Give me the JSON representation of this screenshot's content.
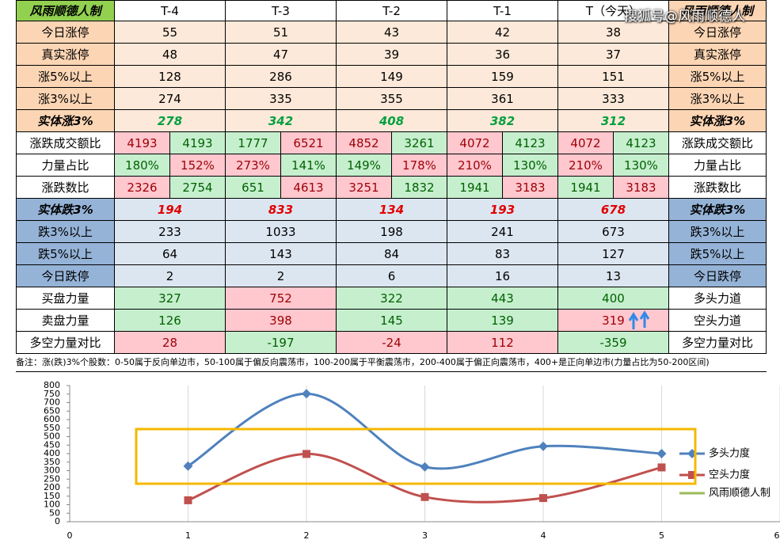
{
  "watermark": "搜狐号@风雨顺德人",
  "table": {
    "header": [
      "风雨顺德人制",
      "T-4",
      "T-3",
      "T-2",
      "T-1",
      "T（今天）",
      "风雨顺德人制"
    ],
    "header_fills": [
      "#92d050",
      "#ffffff",
      "#ffffff",
      "#ffffff",
      "#ffffff",
      "#ffffff",
      "#fcd5b4"
    ],
    "rows": [
      {
        "left": "今日涨停",
        "right": "今日涨停",
        "label_fill": "#fcd5b4",
        "fill": "#fde9d9",
        "color": "#000000",
        "cells": [
          55,
          51,
          43,
          42,
          38
        ]
      },
      {
        "left": "真实涨停",
        "right": "真实涨停",
        "label_fill": "#fcd5b4",
        "fill": "#fde9d9",
        "color": "#000000",
        "cells": [
          48,
          47,
          39,
          36,
          37
        ]
      },
      {
        "left": "涨5%以上",
        "right": "涨5%以上",
        "label_fill": "#fcd5b4",
        "fill": "#fde9d9",
        "color": "#000000",
        "cells": [
          128,
          286,
          149,
          159,
          151
        ]
      },
      {
        "left": "涨3%以上",
        "right": "涨3%以上",
        "label_fill": "#fcd5b4",
        "fill": "#fde9d9",
        "color": "#000000",
        "cells": [
          274,
          335,
          355,
          361,
          333
        ]
      },
      {
        "left": "实体涨3%",
        "right": "实体涨3%",
        "label_fill": "#fcd5b4",
        "fill": "#fde9d9",
        "color": "#00a040",
        "emph": true,
        "cells": [
          278,
          342,
          408,
          382,
          312
        ]
      },
      {
        "left": "涨跌成交额比",
        "right": "涨跌成交额比",
        "label_fill": "#ffffff",
        "fill": [
          [
            "#ffc7ce",
            "#c6efce"
          ],
          [
            "#c6efce",
            "#ffc7ce"
          ],
          [
            "#ffc7ce",
            "#c6efce"
          ],
          [
            "#ffc7ce",
            "#c6efce"
          ],
          [
            "#ffc7ce",
            "#c6efce"
          ]
        ],
        "cells": [
          [
            4193,
            4193
          ],
          [
            1777,
            6521
          ],
          [
            4852,
            3261
          ],
          [
            4072,
            4123
          ],
          [
            4072,
            4123
          ]
        ]
      },
      {
        "left": "力量占比",
        "right": "力量占比",
        "label_fill": "#ffffff",
        "fill": [
          [
            "#c6efce",
            "#ffc7ce"
          ],
          [
            "#ffc7ce",
            "#c6efce"
          ],
          [
            "#c6efce",
            "#ffc7ce"
          ],
          [
            "#ffc7ce",
            "#c6efce"
          ],
          [
            "#ffc7ce",
            "#c6efce"
          ]
        ],
        "cells": [
          [
            "180%",
            "152%"
          ],
          [
            "273%",
            "141%"
          ],
          [
            "149%",
            "178%"
          ],
          [
            "210%",
            "130%"
          ],
          [
            "210%",
            "130%"
          ]
        ]
      },
      {
        "left": "涨跌数比",
        "right": "涨跌数比",
        "label_fill": "#ffffff",
        "fill": [
          [
            "#ffc7ce",
            "#c6efce"
          ],
          [
            "#c6efce",
            "#ffc7ce"
          ],
          [
            "#ffc7ce",
            "#c6efce"
          ],
          [
            "#c6efce",
            "#ffc7ce"
          ],
          [
            "#c6efce",
            "#ffc7ce"
          ]
        ],
        "cells": [
          [
            2326,
            2754
          ],
          [
            651,
            4613
          ],
          [
            3251,
            1832
          ],
          [
            1941,
            3183
          ],
          [
            1941,
            3183
          ]
        ]
      },
      {
        "left": "实体跌3%",
        "right": "实体跌3%",
        "label_fill": "#95b3d7",
        "fill": "#dce6f1",
        "color": "#e00000",
        "emph": true,
        "cells": [
          194,
          833,
          134,
          193,
          678
        ]
      },
      {
        "left": "跌3%以上",
        "right": "跌3%以上",
        "label_fill": "#95b3d7",
        "fill": "#dce6f1",
        "color": "#000000",
        "cells": [
          233,
          1033,
          198,
          241,
          673
        ]
      },
      {
        "left": "跌5%以上",
        "right": "跌5%以上",
        "label_fill": "#95b3d7",
        "fill": "#dce6f1",
        "color": "#000000",
        "cells": [
          64,
          143,
          84,
          83,
          127
        ]
      },
      {
        "left": "今日跌停",
        "right": "今日跌停",
        "label_fill": "#95b3d7",
        "fill": "#dce6f1",
        "color": "#000000",
        "cells": [
          2,
          2,
          6,
          16,
          13
        ]
      },
      {
        "left": "买盘力量",
        "right": "多头力道",
        "label_fill": "#ffffff",
        "fill": [
          "#c6efce",
          "#ffc7ce",
          "#c6efce",
          "#c6efce",
          "#c6efce"
        ],
        "cells": [
          327,
          752,
          322,
          443,
          400
        ]
      },
      {
        "left": "卖盘力量",
        "right": "空头力道",
        "label_fill": "#ffffff",
        "fill": [
          "#c6efce",
          "#ffc7ce",
          "#c6efce",
          "#c6efce",
          "#ffc7ce"
        ],
        "cells": [
          126,
          398,
          145,
          139,
          319
        ]
      },
      {
        "left": "多空力量对比",
        "right": "多空力量对比",
        "label_fill": "#ffffff",
        "fill": [
          "#ffc7ce",
          "#c6efce",
          "#ffc7ce",
          "#ffc7ce",
          "#c6efce"
        ],
        "cells": [
          28,
          -197,
          -24,
          112,
          -359
        ]
      }
    ],
    "note": "备注：涨(跌)3%个股数：0-50属于反向单边市，50-100属于偏反向震荡市，100-200属于平衡震荡市，200-400属于偏正向震荡市，400+是正向单边市(力量占比为50-200区间)"
  },
  "chart_data": {
    "type": "line",
    "x": [
      1,
      2,
      3,
      4,
      5
    ],
    "series": [
      {
        "name": "多头力度",
        "color": "#4f81bd",
        "marker": "diamond",
        "values": [
          327,
          752,
          322,
          443,
          400
        ]
      },
      {
        "name": "空头力度",
        "color": "#c0504d",
        "marker": "square",
        "values": [
          126,
          398,
          145,
          139,
          319
        ]
      },
      {
        "name": "风雨顺德人制",
        "color": "#9bbb59",
        "values": [
          null,
          null,
          null,
          null,
          null
        ]
      }
    ],
    "xlim": [
      0,
      6
    ],
    "xticks": [
      0,
      1,
      2,
      3,
      4,
      5,
      6
    ],
    "ylim": [
      0,
      800
    ],
    "yticks": [
      0,
      50,
      100,
      150,
      200,
      250,
      300,
      350,
      400,
      450,
      500,
      550,
      600,
      650,
      700,
      750,
      800
    ],
    "grid": true,
    "smooth": true,
    "legend": "right"
  }
}
